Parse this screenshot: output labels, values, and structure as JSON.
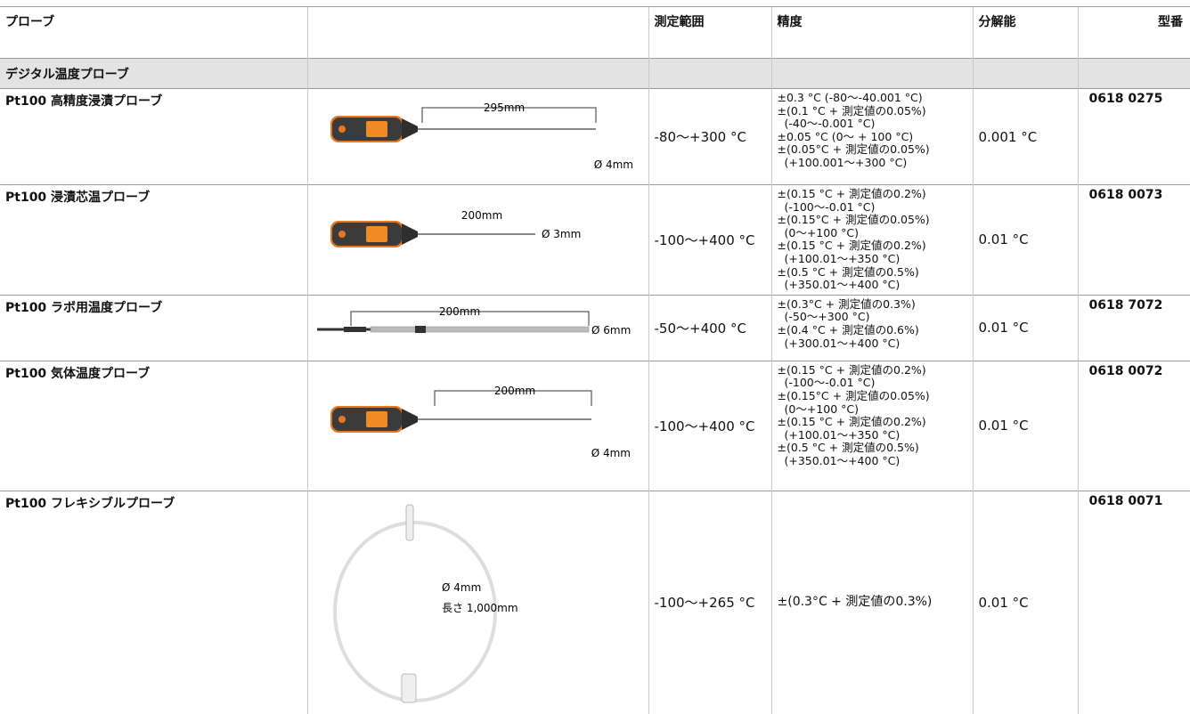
{
  "table": {
    "header": {
      "probe": "プローブ",
      "range": "測定範囲",
      "accuracy": "精度",
      "resolution": "分解能",
      "model": "型番"
    },
    "section": "デジタル温度プローブ",
    "rows": [
      {
        "name": "Pt100 高精度浸漬プローブ",
        "image_labels": [
          "295mm",
          "Ø 4mm"
        ],
        "range": "-80～+300 °C",
        "accuracy": [
          "±0.3 °C (-80～-40.001 °C)",
          "±(0.1 °C + 測定値の0.05%)",
          "(-40～-0.001 °C)",
          "±0.05 °C (0～ + 100 °C)",
          "±(0.05°C + 測定値の0.05%)",
          "(+100.001～+300 °C)"
        ],
        "resolution": "0.001 °C",
        "model": "0618 0275"
      },
      {
        "name": "Pt100 浸漬芯温プローブ",
        "image_labels": [
          "200mm",
          "Ø 3mm"
        ],
        "range": "-100～+400 °C",
        "accuracy": [
          "±(0.15 °C + 測定値の0.2%)",
          "(-100～-0.01 °C)",
          "±(0.15°C + 測定値の0.05%)",
          "(0～+100 °C)",
          "±(0.15 °C + 測定値の0.2%)",
          "(+100.01～+350 °C)",
          "±(0.5 °C + 測定値の0.5%)",
          "(+350.01～+400 °C)"
        ],
        "resolution": "0.01 °C",
        "model": "0618 0073"
      },
      {
        "name": "Pt100 ラボ用温度プローブ",
        "image_labels": [
          "200mm",
          "Ø 6mm"
        ],
        "range": "-50～+400 °C",
        "accuracy": [
          "±(0.3°C + 測定値の0.3%)",
          "(-50～+300 °C)",
          "±(0.4 °C + 測定値の0.6%)",
          "(+300.01～+400 °C)"
        ],
        "resolution": "0.01 °C",
        "model": "0618 7072"
      },
      {
        "name": "Pt100 気体温度プローブ",
        "image_labels": [
          "200mm",
          "Ø 4mm"
        ],
        "range": "-100～+400 °C",
        "accuracy": [
          "±(0.15 °C + 測定値の0.2%)",
          "(-100～-0.01 °C)",
          "±(0.15°C + 測定値の0.05%)",
          "(0～+100 °C)",
          "±(0.15 °C + 測定値の0.2%)",
          "(+100.01～+350 °C)",
          "±(0.5 °C + 測定値の0.5%)",
          "(+350.01～+400 °C)"
        ],
        "resolution": "0.01 °C",
        "model": "0618 0072"
      },
      {
        "name": "Pt100 フレキシブルプローブ",
        "image_labels": [
          "Ø 4mm",
          "長さ 1,000mm"
        ],
        "range": "-100～+265 °C",
        "accuracy": [
          "±(0.3°C + 測定値の0.3%)"
        ],
        "resolution": "0.01 °C",
        "model": "0618 0071"
      }
    ]
  }
}
